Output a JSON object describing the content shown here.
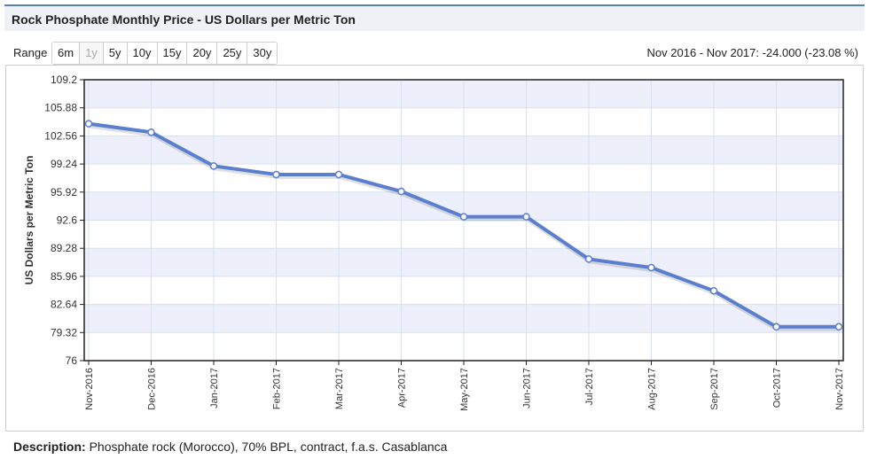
{
  "header": {
    "title": "Rock Phosphate Monthly Price - US Dollars per Metric Ton"
  },
  "range": {
    "label": "Range",
    "buttons": [
      "6m",
      "1y",
      "5y",
      "10y",
      "15y",
      "20y",
      "25y",
      "30y"
    ],
    "selected": "1y"
  },
  "change_text": "Nov 2016 - Nov 2017: -24.000 (-23.08 %)",
  "description": {
    "label": "Description:",
    "text": "Phosphate rock (Morocco), 70% BPL, contract, f.a.s. Casablanca"
  },
  "colors": {
    "line": "#5b7fcf",
    "band": "#edf0fa",
    "axis": "#222222",
    "grid": "#d6e0f0"
  },
  "chart_data": {
    "type": "line",
    "title": "Rock Phosphate Monthly Price - US Dollars per Metric Ton",
    "xlabel": "",
    "ylabel": "US Dollars per Metric Ton",
    "ylim": [
      76,
      109.2
    ],
    "yticks": [
      "109.2",
      "105.88",
      "102.56",
      "99.24",
      "95.92",
      "92.6",
      "89.28",
      "85.96",
      "82.64",
      "79.32",
      "76"
    ],
    "categories": [
      "Nov-2016",
      "Dec-2016",
      "Jan-2017",
      "Feb-2017",
      "Mar-2017",
      "Apr-2017",
      "May-2017",
      "Jun-2017",
      "Jul-2017",
      "Aug-2017",
      "Sep-2017",
      "Oct-2017",
      "Nov-2017"
    ],
    "series": [
      {
        "name": "Rock Phosphate",
        "values": [
          104,
          103,
          99,
          98,
          98,
          96,
          93,
          93,
          88,
          87,
          84.25,
          80,
          80
        ]
      }
    ]
  }
}
